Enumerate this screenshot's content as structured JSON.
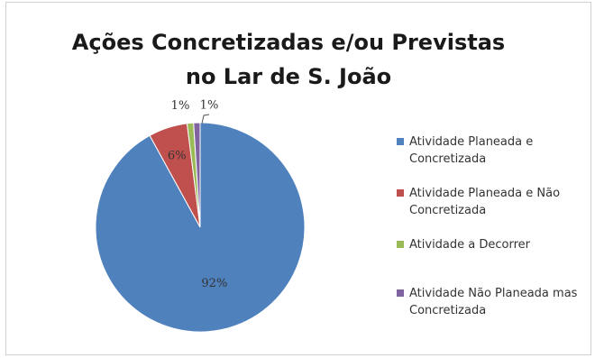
{
  "chart_data": {
    "type": "pie",
    "title": "Ações Concretizadas e/ou Previstas no Lar de S. João",
    "categories": [
      "Atividade Planeada e Concretizada",
      "Atividade Planeada e Não Concretizada",
      "Atividade a Decorrer",
      "Atividade Não Planeada mas Concretizada"
    ],
    "values": [
      92,
      6,
      1,
      1
    ],
    "data_labels": [
      "92%",
      "6%",
      "1%",
      "1%"
    ],
    "colors": [
      "#4f81bd",
      "#c0504d",
      "#9bbb59",
      "#8064a2"
    ],
    "legend_position": "right"
  }
}
